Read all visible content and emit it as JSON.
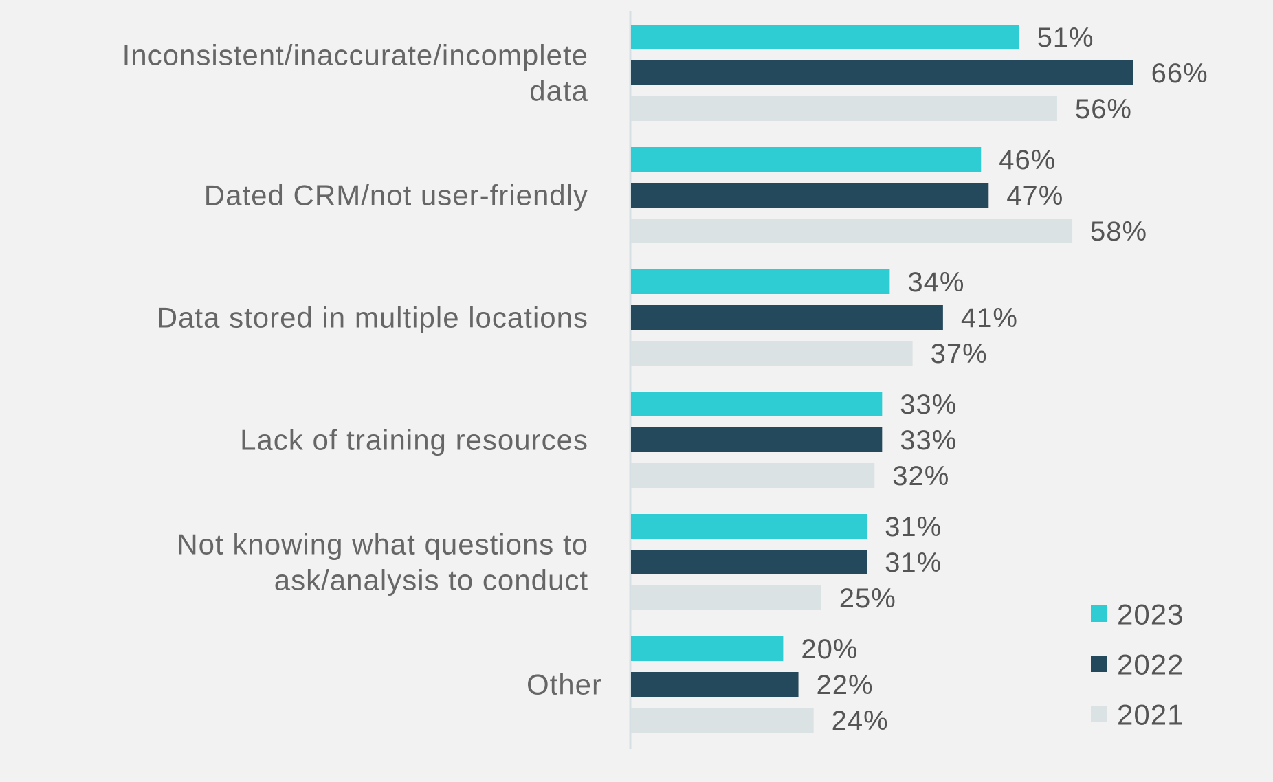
{
  "chart_data": {
    "type": "bar",
    "orientation": "horizontal",
    "title": "",
    "xlabel": "",
    "ylabel": "",
    "xlim": [
      0,
      100
    ],
    "grid": false,
    "legend_position": "bottom-right",
    "categories": [
      [
        "Inconsistent/inaccurate/incomplete",
        "data"
      ],
      [
        "Dated CRM/not user-friendly"
      ],
      [
        "Data stored in multiple locations"
      ],
      [
        "Lack of training resources"
      ],
      [
        "Not knowing what questions to",
        "ask/analysis to conduct"
      ],
      [
        "Other"
      ]
    ],
    "series": [
      {
        "name": "2023",
        "color": "#2ecdd4",
        "values": [
          51,
          46,
          34,
          33,
          31,
          20
        ]
      },
      {
        "name": "2022",
        "color": "#24485c",
        "values": [
          66,
          47,
          41,
          33,
          31,
          22
        ]
      },
      {
        "name": "2021",
        "color": "#dae2e3",
        "values": [
          56,
          58,
          37,
          32,
          25,
          24
        ]
      }
    ],
    "value_suffix": "%"
  }
}
